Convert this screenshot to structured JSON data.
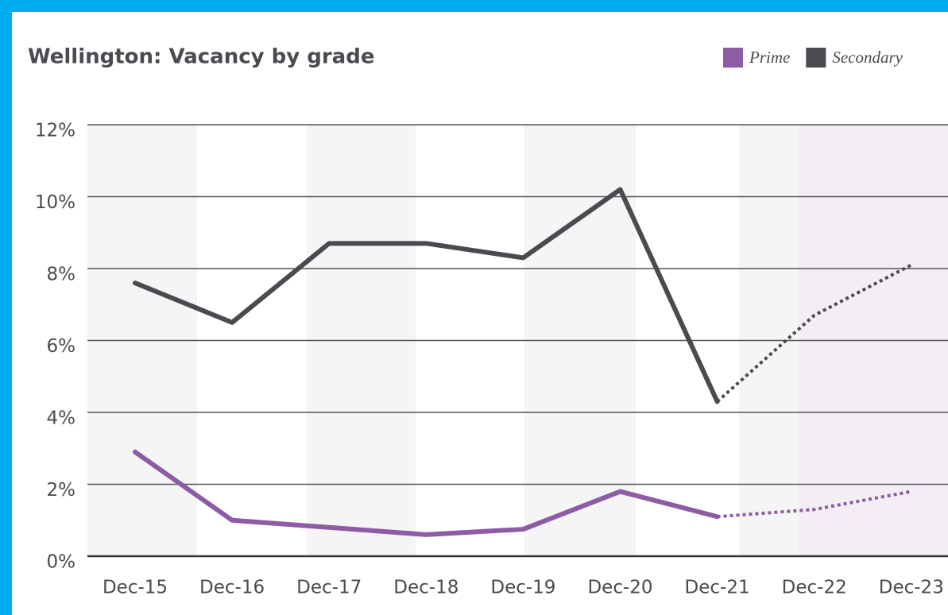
{
  "chart_data": {
    "type": "line",
    "title": "Wellington: Vacancy by grade",
    "categories": [
      "Dec-15",
      "Dec-16",
      "Dec-17",
      "Dec-18",
      "Dec-19",
      "Dec-20",
      "Dec-21",
      "Dec-22",
      "Dec-23"
    ],
    "series": [
      {
        "name": "Prime",
        "color": "#8e5ba5",
        "values": [
          2.9,
          1.0,
          0.8,
          0.6,
          0.75,
          1.8,
          1.1,
          1.3,
          1.8
        ]
      },
      {
        "name": "Secondary",
        "color": "#4a4b50",
        "values": [
          7.6,
          6.5,
          8.7,
          8.7,
          8.3,
          10.2,
          4.3,
          6.7,
          8.1
        ]
      }
    ],
    "dashed_from_index": 6,
    "ylim": [
      0,
      12
    ],
    "yticks": [
      {
        "value": 0,
        "label": "0%"
      },
      {
        "value": 2,
        "label": "2%"
      },
      {
        "value": 4,
        "label": "4%"
      },
      {
        "value": 6,
        "label": "6%"
      },
      {
        "value": 8,
        "label": "8%"
      },
      {
        "value": 10,
        "label": "10%"
      },
      {
        "value": 12,
        "label": "12%"
      }
    ],
    "grid": true,
    "legend": "top-right"
  }
}
